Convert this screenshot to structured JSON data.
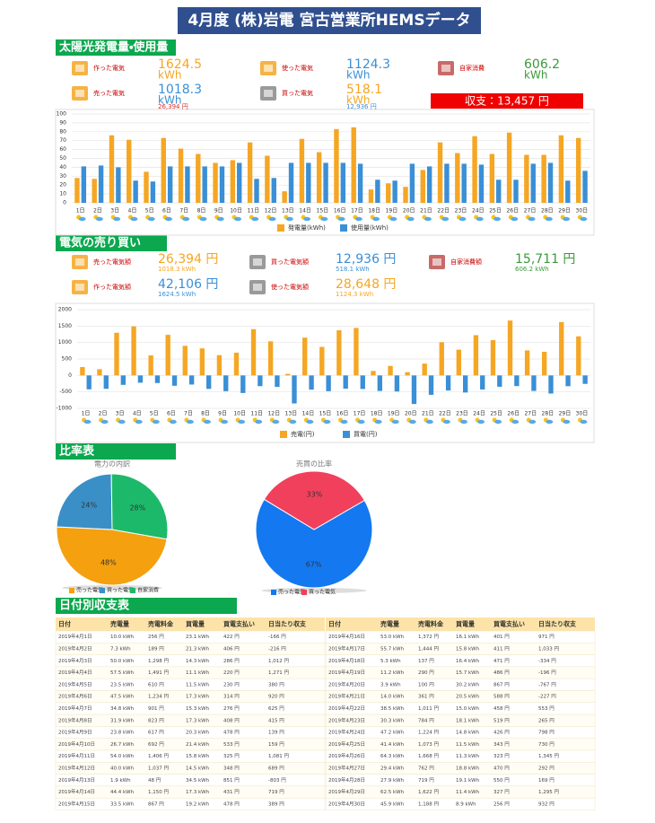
{
  "title": "4月度 (株)岩電 宮古営業所HEMSデータ",
  "sections": [
    "太陽光発電量・使用量",
    "電気の売り買い",
    "比率表",
    "日付別収支表"
  ],
  "solar": {
    "items": [
      {
        "label": "作った電気",
        "value": "1624.5",
        "unit": "kWh",
        "color": "#f5a623"
      },
      {
        "label": "使った電気",
        "value": "1124.3",
        "unit": "kWh",
        "color": "#3a8fd6"
      },
      {
        "label": "自家消費",
        "value": "606.2",
        "unit": "kWh",
        "color": "#3a9a3a"
      },
      {
        "label": "売った電気",
        "value": "1018.3",
        "unit": "kWh",
        "note": "26,394 円",
        "color": "#3a8fd6",
        "note_color": "#d32f2f"
      },
      {
        "label": "買った電気",
        "value": "518.1",
        "unit": "kWh",
        "note": "12,936 円",
        "color": "#f5a623",
        "note_color": "#3a8fd6"
      }
    ],
    "balance": "収支：13,457 円"
  },
  "trade": {
    "items": [
      {
        "label": "売った電気額",
        "value": "26,394 円",
        "note": "1018.3 kWh",
        "color": "#f5a623"
      },
      {
        "label": "買った電気額",
        "value": "12,936 円",
        "note": "518.1 kWh",
        "color": "#3a8fd6"
      },
      {
        "label": "自家消費額",
        "value": "15,711 円",
        "note": "606.2 kWh",
        "color": "#3a9a3a"
      },
      {
        "label": "作った電気額",
        "value": "42,106 円",
        "note": "1624.5 kWh",
        "color": "#3a8fd6"
      },
      {
        "label": "使った電気額",
        "value": "28,648 円",
        "note": "1124.3 kWh",
        "color": "#f5a623"
      }
    ]
  },
  "chart_data": [
    {
      "type": "bar",
      "categories": [
        "1日",
        "2日",
        "3日",
        "4日",
        "5日",
        "6日",
        "7日",
        "8日",
        "9日",
        "10日",
        "11日",
        "12日",
        "13日",
        "14日",
        "15日",
        "16日",
        "17日",
        "18日",
        "19日",
        "20日",
        "21日",
        "22日",
        "23日",
        "24日",
        "25日",
        "26日",
        "27日",
        "28日",
        "29日",
        "30日"
      ],
      "series": [
        {
          "name": "発電量(kWh)",
          "color": "#f5a623",
          "values": [
            28,
            27,
            76,
            71,
            35,
            73,
            61,
            55,
            45,
            48,
            68,
            53,
            13,
            72,
            57,
            83,
            85,
            15,
            22,
            18,
            37,
            68,
            56,
            75,
            55,
            79,
            54,
            54,
            76,
            73
          ]
        },
        {
          "name": "使用量(kWh)",
          "color": "#3a8fd6",
          "values": [
            41,
            42,
            40,
            25,
            24,
            41,
            41,
            41,
            41,
            45,
            27,
            28,
            45,
            45,
            45,
            45,
            44,
            26,
            25,
            44,
            41,
            44,
            44,
            43,
            26,
            26,
            44,
            45,
            25,
            36
          ]
        }
      ],
      "ylim": [
        0,
        100
      ],
      "yticks": [
        0,
        10,
        20,
        30,
        40,
        50,
        60,
        70,
        80,
        90,
        100
      ],
      "grid": true
    },
    {
      "type": "bar",
      "categories": [
        "1日",
        "2日",
        "3日",
        "4日",
        "5日",
        "6日",
        "7日",
        "8日",
        "9日",
        "10日",
        "11日",
        "12日",
        "13日",
        "14日",
        "15日",
        "16日",
        "17日",
        "18日",
        "19日",
        "20日",
        "21日",
        "22日",
        "23日",
        "24日",
        "25日",
        "26日",
        "27日",
        "28日",
        "29日",
        "30日"
      ],
      "series": [
        {
          "name": "売電(円)",
          "color": "#f5a623",
          "values": [
            256,
            189,
            1298,
            1491,
            610,
            1234,
            901,
            823,
            617,
            692,
            1406,
            1037,
            48,
            1150,
            867,
            1372,
            1444,
            137,
            290,
            100,
            361,
            1011,
            784,
            1224,
            1073,
            1668,
            762,
            719,
            1622,
            1188
          ]
        },
        {
          "name": "買電(円)",
          "color": "#3a8fd6",
          "values": [
            -422,
            -406,
            -286,
            -220,
            -230,
            -314,
            -276,
            -408,
            -478,
            -533,
            -325,
            -348,
            -851,
            -431,
            -478,
            -401,
            -411,
            -471,
            -486,
            -867,
            -588,
            -458,
            -519,
            -426,
            -343,
            -323,
            -470,
            -550,
            -327,
            -256
          ]
        }
      ],
      "ylim": [
        -1000,
        2000
      ],
      "yticks": [
        -1000,
        -500,
        0,
        500,
        1000,
        1500,
        2000
      ],
      "grid": true
    },
    {
      "type": "pie",
      "title": "電力の内訳",
      "categories": [
        "売った電気",
        "買った電気",
        "自家消費"
      ],
      "colors": [
        "#f5a00f",
        "#3a8fc6",
        "#1db96a"
      ],
      "values": [
        48,
        24,
        28
      ],
      "value_labels": [
        "48%",
        "24%",
        "28%"
      ]
    },
    {
      "type": "pie",
      "title": "売買の比率",
      "categories": [
        "売った電気",
        "買った電気"
      ],
      "colors": [
        "#1478f0",
        "#f0405c"
      ],
      "values": [
        67,
        33
      ],
      "value_labels": [
        "67%",
        "33%"
      ]
    }
  ],
  "table": {
    "headers": [
      "日付",
      "売電量",
      "売電料金",
      "買電量",
      "買電支払い",
      "日当たり収支"
    ],
    "rows": [
      [
        "2019年4月1日",
        "10.0 kWh",
        "256 円",
        "23.1 kWh",
        "422 円",
        "-166 円"
      ],
      [
        "2019年4月2日",
        "7.3 kWh",
        "189 円",
        "21.3 kWh",
        "406 円",
        "-216 円"
      ],
      [
        "2019年4月3日",
        "50.0 kWh",
        "1,298 円",
        "14.3 kWh",
        "286 円",
        "1,012 円"
      ],
      [
        "2019年4月4日",
        "57.5 kWh",
        "1,491 円",
        "11.1 kWh",
        "220 円",
        "1,271 円"
      ],
      [
        "2019年4月5日",
        "23.5 kWh",
        "610 円",
        "11.5 kWh",
        "230 円",
        "380 円"
      ],
      [
        "2019年4月6日",
        "47.5 kWh",
        "1,234 円",
        "17.3 kWh",
        "314 円",
        "920 円"
      ],
      [
        "2019年4月7日",
        "34.8 kWh",
        "901 円",
        "15.3 kWh",
        "276 円",
        "625 円"
      ],
      [
        "2019年4月8日",
        "31.9 kWh",
        "823 円",
        "17.3 kWh",
        "408 円",
        "415 円"
      ],
      [
        "2019年4月9日",
        "23.8 kWh",
        "617 円",
        "20.3 kWh",
        "478 円",
        "139 円"
      ],
      [
        "2019年4月10日",
        "26.7 kWh",
        "692 円",
        "21.4 kWh",
        "533 円",
        "159 円"
      ],
      [
        "2019年4月11日",
        "54.0 kWh",
        "1,406 円",
        "15.8 kWh",
        "325 円",
        "1,081 円"
      ],
      [
        "2019年4月12日",
        "40.0 kWh",
        "1,037 円",
        "14.5 kWh",
        "348 円",
        "689 円"
      ],
      [
        "2019年4月13日",
        "1.9 kWh",
        "48 円",
        "34.5 kWh",
        "851 円",
        "-803 円"
      ],
      [
        "2019年4月14日",
        "44.4 kWh",
        "1,150 円",
        "17.3 kWh",
        "431 円",
        "719 円"
      ],
      [
        "2019年4月15日",
        "33.5 kWh",
        "867 円",
        "19.2 kWh",
        "478 円",
        "389 円"
      ],
      [
        "2019年4月16日",
        "53.0 kWh",
        "1,372 円",
        "16.1 kWh",
        "401 円",
        "971 円"
      ],
      [
        "2019年4月17日",
        "55.7 kWh",
        "1,444 円",
        "15.8 kWh",
        "411 円",
        "1,033 円"
      ],
      [
        "2019年4月18日",
        "5.3 kWh",
        "137 円",
        "16.4 kWh",
        "471 円",
        "-334 円"
      ],
      [
        "2019年4月19日",
        "11.2 kWh",
        "290 円",
        "15.7 kWh",
        "486 円",
        "-196 円"
      ],
      [
        "2019年4月20日",
        "3.9 kWh",
        "100 円",
        "30.2 kWh",
        "867 円",
        "-767 円"
      ],
      [
        "2019年4月21日",
        "14.0 kWh",
        "361 円",
        "20.5 kWh",
        "588 円",
        "-227 円"
      ],
      [
        "2019年4月22日",
        "38.5 kWh",
        "1,011 円",
        "15.0 kWh",
        "458 円",
        "553 円"
      ],
      [
        "2019年4月23日",
        "30.3 kWh",
        "784 円",
        "18.1 kWh",
        "519 円",
        "265 円"
      ],
      [
        "2019年4月24日",
        "47.2 kWh",
        "1,224 円",
        "14.8 kWh",
        "426 円",
        "798 円"
      ],
      [
        "2019年4月25日",
        "41.4 kWh",
        "1,073 円",
        "11.5 kWh",
        "343 円",
        "730 円"
      ],
      [
        "2019年4月26日",
        "64.3 kWh",
        "1,668 円",
        "11.3 kWh",
        "323 円",
        "1,345 円"
      ],
      [
        "2019年4月27日",
        "29.4 kWh",
        "762 円",
        "18.8 kWh",
        "470 円",
        "292 円"
      ],
      [
        "2019年4月28日",
        "27.9 kWh",
        "719 円",
        "19.1 kWh",
        "550 円",
        "169 円"
      ],
      [
        "2019年4月29日",
        "62.5 kWh",
        "1,622 円",
        "11.4 kWh",
        "327 円",
        "1,295 円"
      ],
      [
        "2019年4月30日",
        "45.9 kWh",
        "1,188 円",
        "8.9 kWh",
        "256 円",
        "932 円"
      ]
    ]
  }
}
